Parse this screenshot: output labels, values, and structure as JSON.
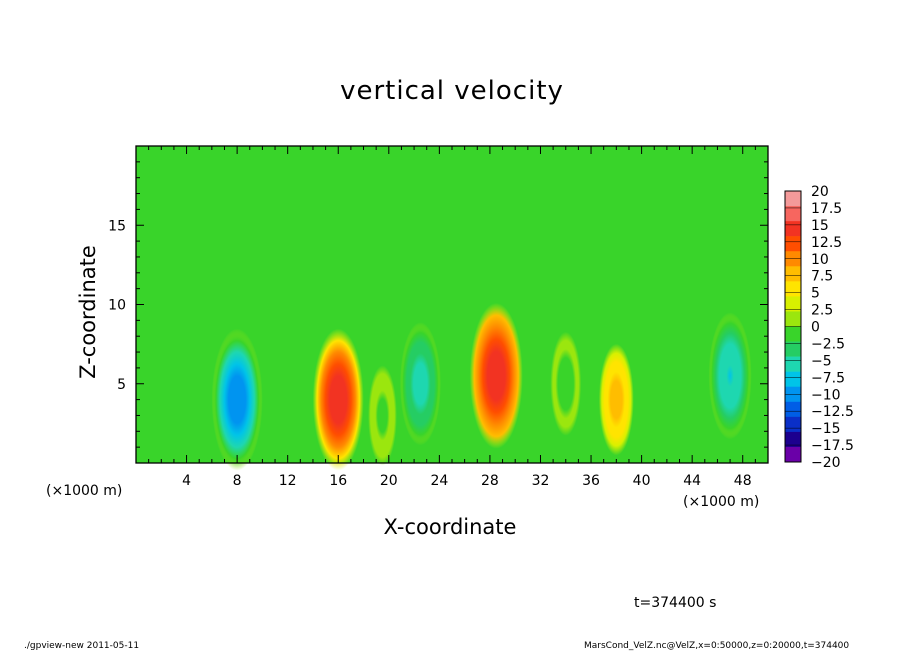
{
  "chart_data": {
    "type": "heatmap",
    "title": "vertical velocity",
    "xlabel": "X-coordinate",
    "ylabel": "Z-coordinate",
    "x_unit_label": "(×1000 m)",
    "x_unit_label_right": "(×1000 m)",
    "xlim": [
      0,
      50
    ],
    "ylim": [
      0,
      20
    ],
    "x_ticks": [
      4,
      8,
      12,
      16,
      20,
      24,
      28,
      32,
      36,
      40,
      44,
      48
    ],
    "y_ticks": [
      5,
      10,
      15
    ],
    "colorbar": {
      "levels": [
        20,
        17.5,
        15,
        12.5,
        10,
        7.5,
        5,
        2.5,
        0,
        -2.5,
        -5,
        -7.5,
        -10,
        -12.5,
        -15,
        -17.5,
        -20
      ],
      "colors": [
        "#f49a9a",
        "#f7665f",
        "#f23322",
        "#ff4e00",
        "#ff8a00",
        "#ffbd00",
        "#ffe400",
        "#d8f000",
        "#9be60e",
        "#39d42a",
        "#25cd63",
        "#1ed7b0",
        "#00c4e8",
        "#0094f0",
        "#005ee6",
        "#0a2fc8",
        "#1c008e",
        "#6a00a8"
      ],
      "level_labels": [
        "20",
        "17.5",
        "15",
        "12.5",
        "10",
        "7.5",
        "5",
        "2.5",
        "0",
        "−2.5",
        "−5",
        "−7.5",
        "−10",
        "−12.5",
        "−15",
        "−17.5",
        "−20"
      ]
    },
    "features": [
      {
        "x": 8,
        "z": 4,
        "w": -14
      },
      {
        "x": 16,
        "z": 4,
        "w": 14
      },
      {
        "x": 22.5,
        "z": 5,
        "w": -9
      },
      {
        "x": 28.5,
        "z": 5.5,
        "w": 15
      },
      {
        "x": 19.5,
        "z": 3,
        "w": -3
      },
      {
        "x": 34,
        "z": 5,
        "w": -4
      },
      {
        "x": 38,
        "z": 4,
        "w": 6
      },
      {
        "x": 47,
        "z": 5.5,
        "w": -10
      }
    ],
    "background_value": 0
  },
  "annotations": {
    "time": "t=374400 s",
    "footer_left": "./gpview-new  2011-05-11",
    "footer_right": "MarsCond_VelZ.nc@VelZ,x=0:50000,z=0:20000,t=374400"
  }
}
